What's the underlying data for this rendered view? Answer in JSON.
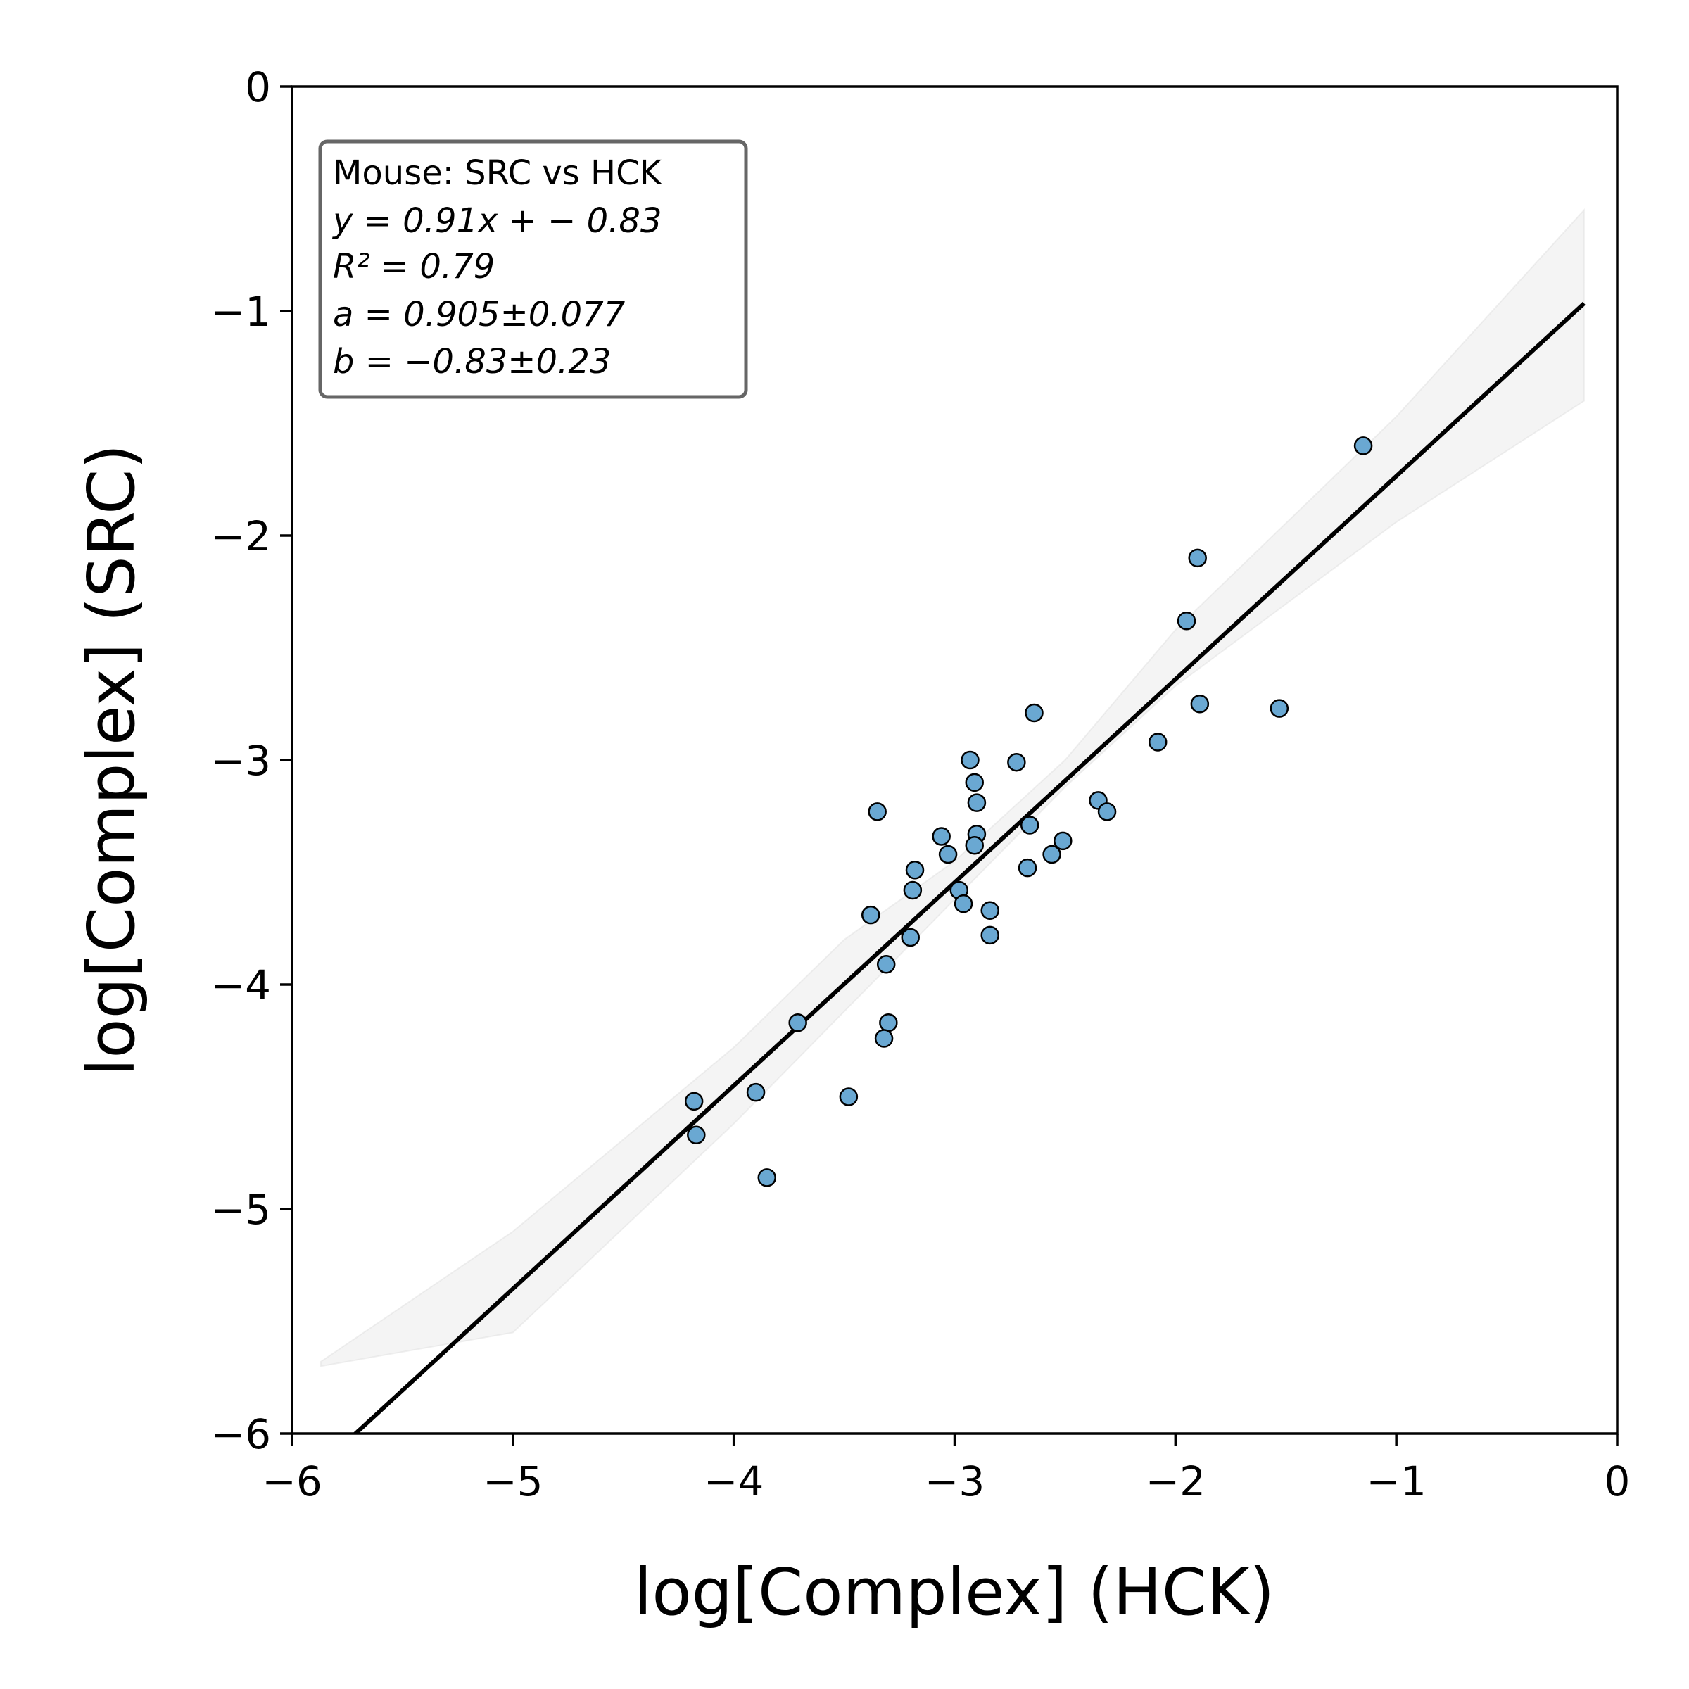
{
  "chart_data": {
    "type": "scatter",
    "xlabel": "log[Complex] (HCK)",
    "ylabel": "log[Complex] (SRC)",
    "xlim": [
      -6,
      0
    ],
    "ylim": [
      -6,
      0
    ],
    "xticks": [
      "−6",
      "−5",
      "−4",
      "−3",
      "−2",
      "−1",
      "0"
    ],
    "yticks": [
      "0",
      "−1",
      "−2",
      "−3",
      "−4",
      "−5",
      "−6"
    ],
    "grid": false,
    "annotation": {
      "title": "Mouse: SRC vs HCK",
      "equation": "y = 0.91x + − 0.83",
      "r2": "R² = 0.79",
      "slope": "a = 0.905±0.077",
      "intercept": "b = −0.83±0.23",
      "placement": "top-left"
    },
    "fit_line": {
      "slope": 0.905,
      "intercept": -0.83,
      "x_range": [
        -5.87,
        -0.15
      ]
    },
    "confidence_band": {
      "x": [
        -5.87,
        -5.0,
        -4.0,
        -3.5,
        -3.0,
        -2.5,
        -2.0,
        -1.0,
        -0.15
      ],
      "lower": [
        -5.7,
        -5.55,
        -4.62,
        -4.12,
        -3.62,
        -3.12,
        -2.67,
        -1.94,
        -1.4
      ],
      "upper": [
        -5.68,
        -5.1,
        -4.28,
        -3.8,
        -3.45,
        -3.0,
        -2.42,
        -1.47,
        -0.55
      ]
    },
    "points": [
      {
        "x": -1.15,
        "y": -1.6
      },
      {
        "x": -1.9,
        "y": -2.1
      },
      {
        "x": -1.95,
        "y": -2.38
      },
      {
        "x": -1.89,
        "y": -2.75
      },
      {
        "x": -1.53,
        "y": -2.77
      },
      {
        "x": -2.08,
        "y": -2.92
      },
      {
        "x": -2.64,
        "y": -2.79
      },
      {
        "x": -2.72,
        "y": -3.01
      },
      {
        "x": -2.93,
        "y": -3.0
      },
      {
        "x": -2.91,
        "y": -3.1
      },
      {
        "x": -2.9,
        "y": -3.19
      },
      {
        "x": -2.35,
        "y": -3.18
      },
      {
        "x": -2.31,
        "y": -3.23
      },
      {
        "x": -3.35,
        "y": -3.23
      },
      {
        "x": -2.66,
        "y": -3.29
      },
      {
        "x": -3.06,
        "y": -3.34
      },
      {
        "x": -2.9,
        "y": -3.33
      },
      {
        "x": -2.91,
        "y": -3.38
      },
      {
        "x": -2.51,
        "y": -3.36
      },
      {
        "x": -3.03,
        "y": -3.42
      },
      {
        "x": -2.56,
        "y": -3.42
      },
      {
        "x": -2.67,
        "y": -3.48
      },
      {
        "x": -3.18,
        "y": -3.49
      },
      {
        "x": -3.19,
        "y": -3.58
      },
      {
        "x": -2.98,
        "y": -3.58
      },
      {
        "x": -2.96,
        "y": -3.64
      },
      {
        "x": -2.84,
        "y": -3.67
      },
      {
        "x": -3.38,
        "y": -3.69
      },
      {
        "x": -2.84,
        "y": -3.78
      },
      {
        "x": -3.2,
        "y": -3.79
      },
      {
        "x": -3.31,
        "y": -3.91
      },
      {
        "x": -3.71,
        "y": -4.17
      },
      {
        "x": -3.3,
        "y": -4.17
      },
      {
        "x": -3.32,
        "y": -4.24
      },
      {
        "x": -3.9,
        "y": -4.48
      },
      {
        "x": -4.18,
        "y": -4.52
      },
      {
        "x": -3.48,
        "y": -4.5
      },
      {
        "x": -4.17,
        "y": -4.67
      },
      {
        "x": -3.85,
        "y": -4.86
      }
    ]
  },
  "colors": {
    "point_fill": "#6aa8d2",
    "point_edge": "#000000",
    "fit_line": "#000000",
    "band": "#d9d9d9",
    "annotation_border": "#666666"
  }
}
